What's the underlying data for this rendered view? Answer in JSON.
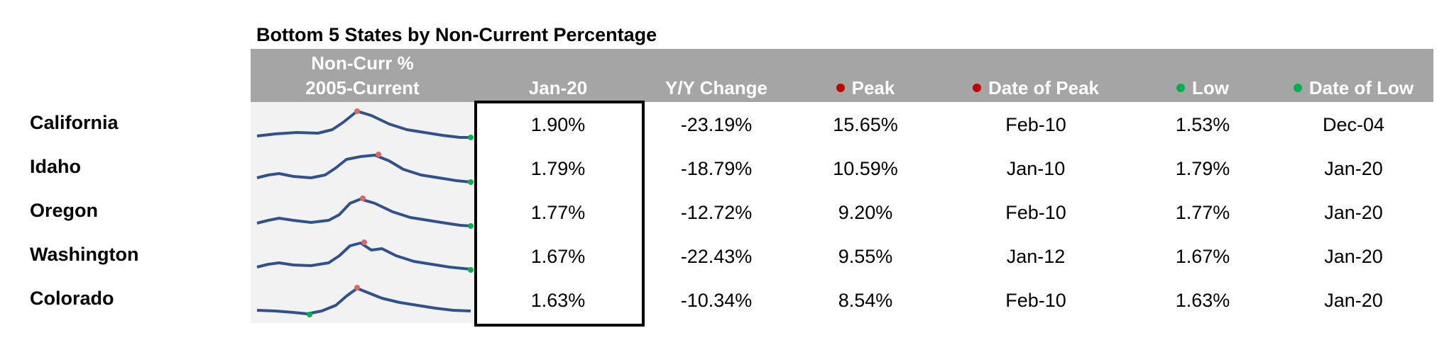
{
  "title": "Bottom 5 States by Non-Current Percentage",
  "headers": {
    "sparkline_line1": "Non-Curr %",
    "sparkline_line2": "2005-Current",
    "current": "Jan-20",
    "yoy": "Y/Y Change",
    "peak": "Peak",
    "date_of_peak": "Date of Peak",
    "low": "Low",
    "date_of_low": "Date of Low"
  },
  "colors": {
    "header_bg": "#a5a5a5",
    "spark_line": "#2f528f",
    "peak_marker": "#e06666",
    "low_marker": "#00b050"
  },
  "rows": [
    {
      "state": "California",
      "current": "1.90%",
      "yoy": "-23.19%",
      "peak": "15.65%",
      "date_of_peak": "Feb-10",
      "low": "1.53%",
      "date_of_low": "Dec-04"
    },
    {
      "state": "Idaho",
      "current": "1.79%",
      "yoy": "-18.79%",
      "peak": "10.59%",
      "date_of_peak": "Jan-10",
      "low": "1.79%",
      "date_of_low": "Jan-20"
    },
    {
      "state": "Oregon",
      "current": "1.77%",
      "yoy": "-12.72%",
      "peak": "9.20%",
      "date_of_peak": "Feb-10",
      "low": "1.77%",
      "date_of_low": "Jan-20"
    },
    {
      "state": "Washington",
      "current": "1.67%",
      "yoy": "-22.43%",
      "peak": "9.55%",
      "date_of_peak": "Jan-12",
      "low": "1.67%",
      "date_of_low": "Jan-20"
    },
    {
      "state": "Colorado",
      "current": "1.63%",
      "yoy": "-10.34%",
      "peak": "8.54%",
      "date_of_peak": "Feb-10",
      "low": "1.63%",
      "date_of_low": "Jan-20"
    }
  ]
}
